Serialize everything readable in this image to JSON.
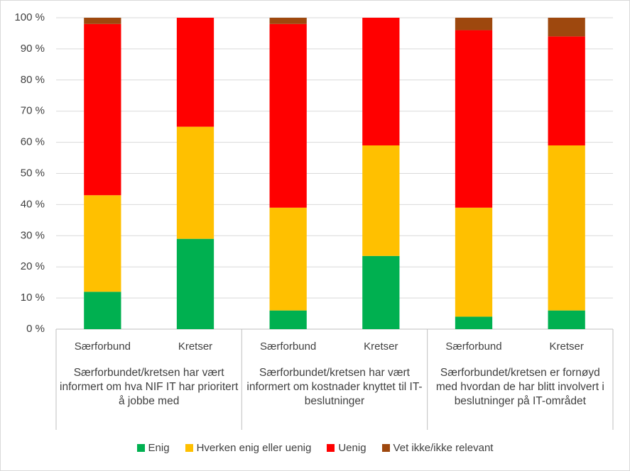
{
  "chart_data": {
    "type": "stacked_bar",
    "groups": [
      {
        "label": "Særforbundet/kretsen har vært informert om hva NIF IT har prioritert å jobbe med",
        "categories": [
          "Særforbund",
          "Kretser"
        ]
      },
      {
        "label": "Særforbundet/kretsen har vært informert om kostnader knyttet til IT-beslutninger",
        "categories": [
          "Særforbund",
          "Kretser"
        ]
      },
      {
        "label": "Særforbundet/kretsen er fornøyd med hvordan de har blitt involvert i beslutninger på IT-området",
        "categories": [
          "Særforbund",
          "Kretser"
        ]
      }
    ],
    "series": [
      {
        "name": "Enig",
        "color": "#00b050",
        "values": [
          12,
          29,
          6,
          23.5,
          4,
          6
        ]
      },
      {
        "name": "Hverken enig eller uenig",
        "color": "#ffc000",
        "values": [
          31,
          36,
          33,
          35.5,
          35,
          53
        ]
      },
      {
        "name": "Uenig",
        "color": "#ff0000",
        "values": [
          55,
          35,
          59,
          41,
          57,
          35
        ]
      },
      {
        "name": "Vet ikke/ikke relevant",
        "color": "#9e480e",
        "values": [
          2,
          0,
          2,
          0,
          4,
          6
        ]
      }
    ],
    "ylim": [
      0,
      100
    ],
    "yticks": [
      {
        "value": 0,
        "label": "0 %"
      },
      {
        "value": 10,
        "label": "10 %"
      },
      {
        "value": 20,
        "label": "20 %"
      },
      {
        "value": 30,
        "label": "30 %"
      },
      {
        "value": 40,
        "label": "40 %"
      },
      {
        "value": 50,
        "label": "50 %"
      },
      {
        "value": 60,
        "label": "60 %"
      },
      {
        "value": 70,
        "label": "70 %"
      },
      {
        "value": 80,
        "label": "80 %"
      },
      {
        "value": 90,
        "label": "90 %"
      },
      {
        "value": 100,
        "label": "100 %"
      }
    ],
    "grid": true,
    "legend": "bottom"
  }
}
